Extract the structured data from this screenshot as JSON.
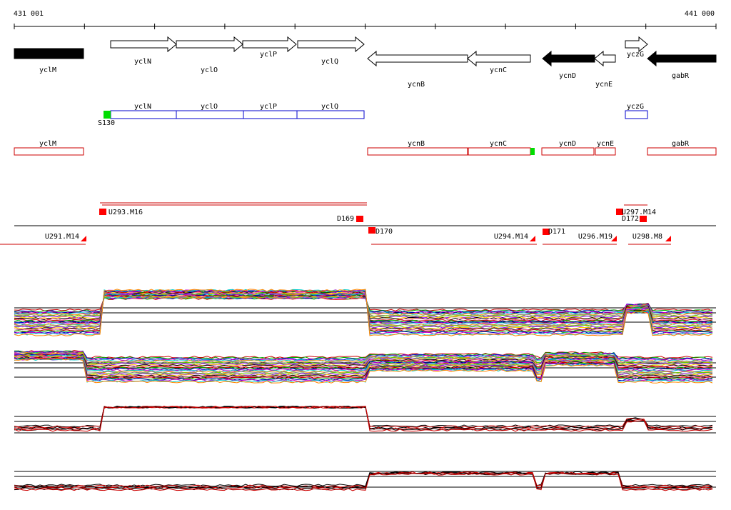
{
  "ruler": {
    "start": "431 001",
    "end": "441 000"
  },
  "genes": [
    "yclM",
    "yclN",
    "yclO",
    "yclP",
    "yclQ",
    "ycnB",
    "ycnC",
    "ycnD",
    "ycnE",
    "yczG",
    "gabR"
  ],
  "blue_boxes": [
    "yclN",
    "yclO",
    "yclP",
    "yclQ",
    "yczG"
  ],
  "marker": "S130",
  "red_boxes": [
    "yclM",
    "ycnB",
    "ycnC",
    "ycnD",
    "ycnE",
    "gabR"
  ],
  "segments": [
    "U293.M16",
    "D169",
    "D170",
    "U291.M14",
    "U294.M14",
    "D171",
    "U296.M19",
    "U298.M8",
    "D172",
    "U297.M14"
  ]
}
